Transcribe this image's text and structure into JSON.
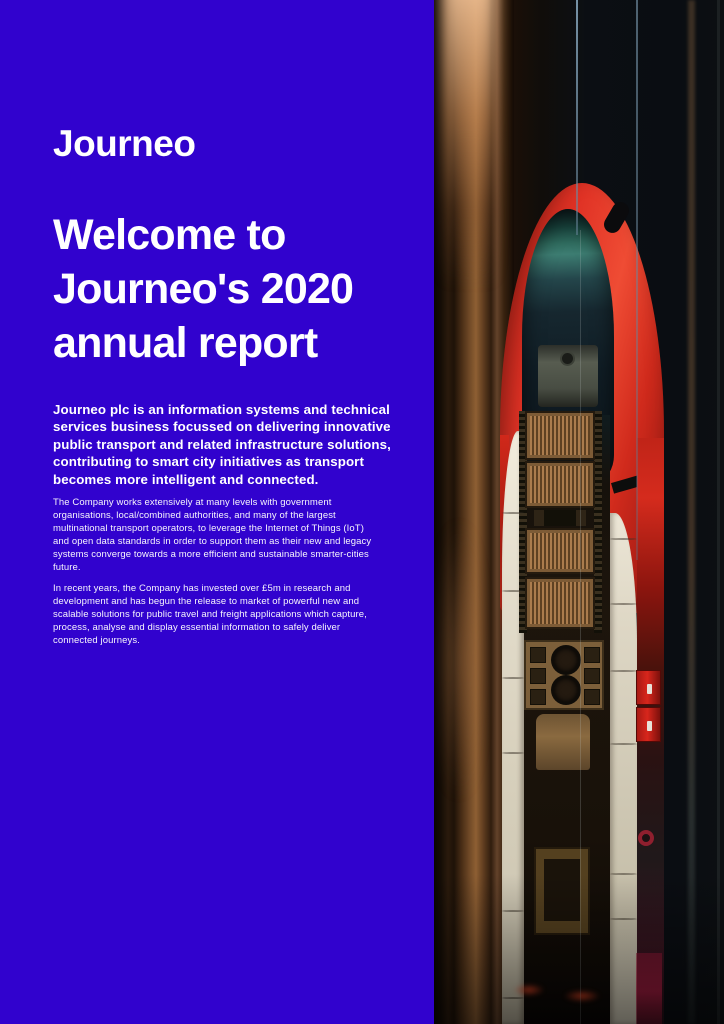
{
  "brand": {
    "logo_text": "Journeo",
    "accent_blue": "#3102ce",
    "train_red": "#e03225"
  },
  "cover": {
    "heading": "Welcome to\nJourneo's 2020\nannual report",
    "intro": "Journeo plc is an information systems and technical\nservices business focussed on delivering innovative\npublic transport and related infrastructure solutions,\ncontributing to smart city initiatives as transport\nbecomes more intelligent and connected.",
    "body_paragraphs": [
      "The Company works extensively at many levels with government\norganisations, local/combined authorities, and many of the largest\nmultinational transport operators, to leverage the Internet of Things (IoT)\nand open data standards in order to support them as their new and legacy\nsystems converge towards a more efficient and sustainable smarter-cities\nfuture.",
      "In recent years, the Company has invested over £5m in research and\ndevelopment and has begun the release to market of powerful new and\nscalable solutions for public travel and freight applications which capture,\nprocess, analyse and display essential information to safely deliver\nconnected journeys."
    ],
    "photo_description": "Top-down motion-blurred photo of a red and white train beside a wooden platform"
  }
}
